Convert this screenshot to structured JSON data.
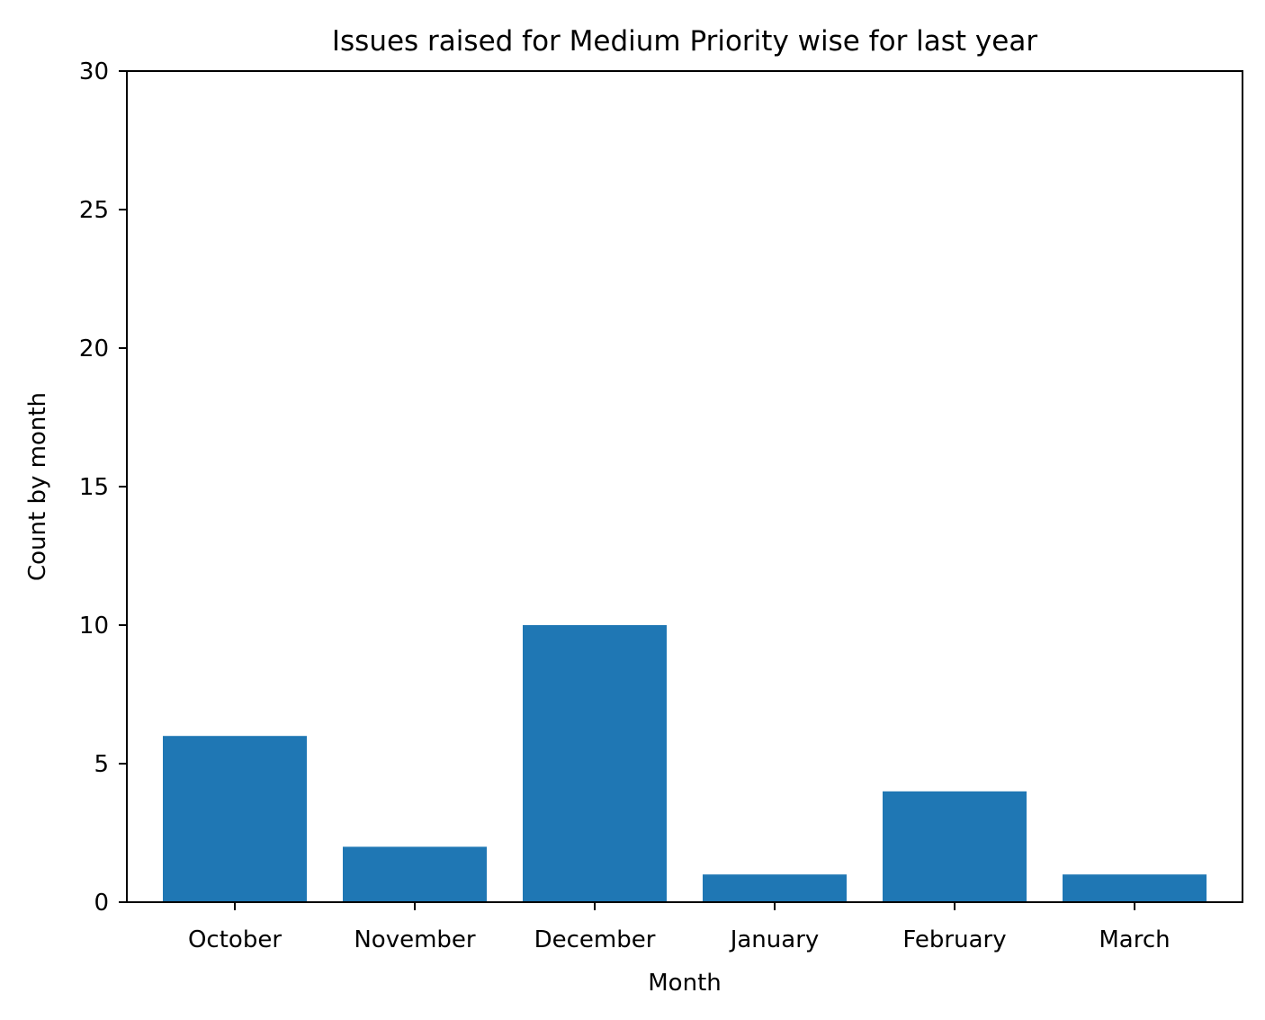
{
  "chart_data": {
    "type": "bar",
    "title": "Issues raised for Medium Priority wise for last year",
    "xlabel": "Month",
    "ylabel": "Count by month",
    "categories": [
      "October",
      "November",
      "December",
      "January",
      "February",
      "March"
    ],
    "values": [
      6,
      2,
      10,
      1,
      4,
      1
    ],
    "ylim": [
      0,
      30
    ],
    "yticks": [
      "0",
      "5",
      "10",
      "15",
      "20",
      "25",
      "30"
    ],
    "grid": false,
    "legend": "none",
    "bar_color": "#1f77b4"
  }
}
